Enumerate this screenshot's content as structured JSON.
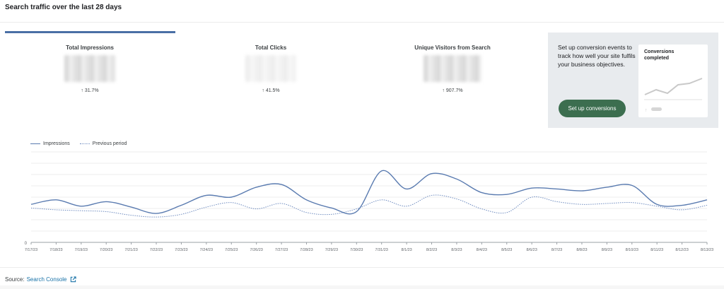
{
  "header": {
    "title": "Search traffic over the last 28 days"
  },
  "metrics": [
    {
      "label": "Total Impressions",
      "change": "31.7%",
      "direction": "up"
    },
    {
      "label": "Total Clicks",
      "change": "41.5%",
      "direction": "up"
    },
    {
      "label": "Unique Visitors from Search",
      "change": "907.7%",
      "direction": "up"
    }
  ],
  "promo": {
    "text": "Set up conversion events to track how well your site fulfils your business objectives.",
    "button_label": "Set up conversions",
    "card_title": "Conversions completed"
  },
  "legend": {
    "current": "Impressions",
    "previous": "Previous period"
  },
  "chart_data": {
    "type": "line",
    "x": [
      "7/17/23",
      "7/18/23",
      "7/19/23",
      "7/20/23",
      "7/21/23",
      "7/22/23",
      "7/23/23",
      "7/24/23",
      "7/25/23",
      "7/26/23",
      "7/27/23",
      "7/28/23",
      "7/29/23",
      "7/30/23",
      "7/31/23",
      "8/1/23",
      "8/2/23",
      "8/3/23",
      "8/4/23",
      "8/5/23",
      "8/6/23",
      "8/7/23",
      "8/8/23",
      "8/9/23",
      "8/10/23",
      "8/11/23",
      "8/12/23",
      "8/13/23"
    ],
    "y_ticks": [
      "0"
    ],
    "ylim": [
      0,
      100
    ],
    "series": [
      {
        "name": "Impressions",
        "style": "solid",
        "color": "#5a7bb0",
        "values": [
          42,
          47,
          40,
          45,
          39,
          32,
          41,
          52,
          50,
          61,
          64,
          47,
          38,
          34,
          79,
          59,
          76,
          70,
          55,
          53,
          60,
          59,
          57,
          61,
          63,
          42,
          41,
          47
        ]
      },
      {
        "name": "Previous period",
        "style": "dotted",
        "color": "#6f8cc0",
        "values": [
          38,
          36,
          35,
          34,
          30,
          28,
          31,
          39,
          44,
          37,
          43,
          33,
          31,
          37,
          47,
          40,
          52,
          48,
          37,
          33,
          50,
          45,
          42,
          43,
          44,
          40,
          36,
          41
        ]
      }
    ]
  },
  "footer": {
    "source_label": "Source:",
    "source_link": "Search Console"
  }
}
